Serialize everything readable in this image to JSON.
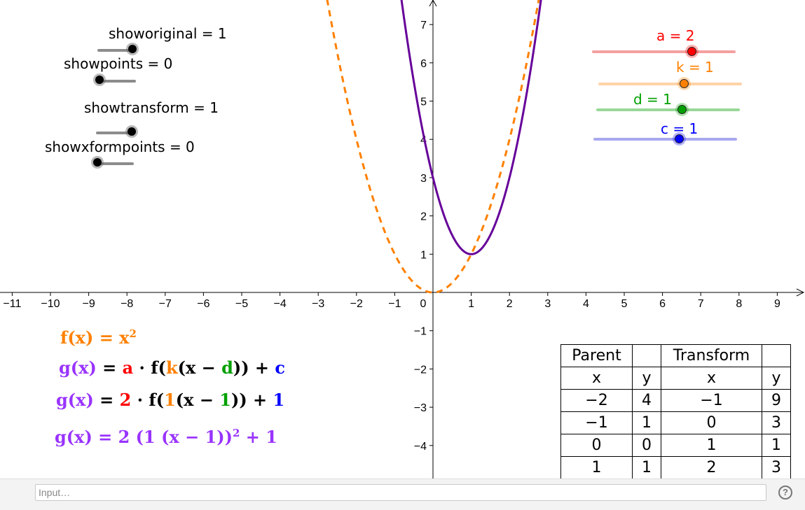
{
  "toggles": [
    {
      "text": "showoriginal = 1",
      "value": 1
    },
    {
      "text": "showpoints = 0",
      "value": 0
    },
    {
      "text": "showtransform = 1",
      "value": 1
    },
    {
      "text": "showxformpoints = 0",
      "value": 0
    }
  ],
  "params": [
    {
      "text": "a = 2",
      "color": "#ff0000",
      "track": "#f4a0a0"
    },
    {
      "text": "k = 1",
      "color": "#ff8000",
      "track": "#ffd2a6"
    },
    {
      "text": "d = 1",
      "color": "#00a000",
      "track": "#98d898"
    },
    {
      "text": "c = 1",
      "color": "#0000ff",
      "track": "#a8a8f0"
    }
  ],
  "graph": {
    "x_ticks": [
      "−11",
      "−10",
      "−9",
      "−8",
      "−7",
      "−6",
      "−5",
      "−4",
      "−3",
      "−2",
      "−1",
      "0",
      "1",
      "2",
      "3",
      "4",
      "5",
      "6",
      "7",
      "8",
      "9"
    ],
    "y_ticks": [
      "−4",
      "−3",
      "−2",
      "−1",
      "1",
      "2",
      "3",
      "4",
      "5",
      "6",
      "7"
    ],
    "parent_color": "#ff8000",
    "transform_color": "#660099"
  },
  "formulas": {
    "f": "f(x) = x",
    "f_exp": "2",
    "g1": {
      "lhs": "g(x)",
      "eq": " = ",
      "a": "a",
      "dot": " · f(",
      "k": "k",
      "open": "(x − ",
      "d": "d",
      "close": ")) + ",
      "c": "c"
    },
    "g2": {
      "lhs": "g(x)",
      "eq": " = ",
      "a": "2",
      "dot": " · f(",
      "k": "1",
      "open": "(x − ",
      "d": "1",
      "close": ")) + ",
      "c": "1"
    },
    "g3": {
      "text": "g(x) = 2  (1  (x − 1))",
      "exp": "2",
      "tail": " + 1"
    }
  },
  "table": {
    "header": [
      "Parent",
      "",
      "Transform",
      ""
    ],
    "subheader": [
      "x",
      "y",
      "x",
      "y"
    ],
    "rows": [
      [
        "−2",
        "4",
        "−1",
        "9"
      ],
      [
        "−1",
        "1",
        "0",
        "3"
      ],
      [
        "0",
        "0",
        "1",
        "1"
      ],
      [
        "1",
        "1",
        "2",
        "3"
      ]
    ]
  },
  "input": {
    "placeholder": "Input…"
  },
  "help": {
    "label": "?"
  }
}
